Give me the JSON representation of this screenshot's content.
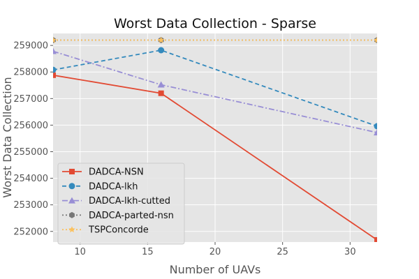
{
  "chart_data": {
    "type": "line",
    "title": "Worst Data Collection - Sparse",
    "xlabel": "Number of UAVs",
    "ylabel": "Worst Data Collection",
    "x": [
      8,
      16,
      32
    ],
    "xlim": [
      8,
      32
    ],
    "ylim": [
      251600,
      259450
    ],
    "xticks": [
      10,
      15,
      20,
      25,
      30
    ],
    "yticks": [
      252000,
      253000,
      254000,
      255000,
      256000,
      257000,
      258000,
      259000
    ],
    "grid": true,
    "background": "#e5e5e5",
    "legend_position": "lower-left",
    "series": [
      {
        "name": "DADCA-NSN",
        "values": [
          257880,
          257200,
          251680
        ],
        "color": "#e24a33",
        "dash": "solid",
        "marker": "square"
      },
      {
        "name": "DADCA-lkh",
        "values": [
          258080,
          258820,
          255960
        ],
        "color": "#348abd",
        "dash": "dashed",
        "marker": "circle"
      },
      {
        "name": "DADCA-lkh-cutted",
        "values": [
          258780,
          257520,
          255720
        ],
        "color": "#988ed5",
        "dash": "dashdot",
        "marker": "triangle"
      },
      {
        "name": "DADCA-parted-nsn",
        "values": [
          259200,
          259200,
          259200
        ],
        "color": "#777777",
        "dash": "dotted",
        "marker": "hexagon"
      },
      {
        "name": "TSPConcorde",
        "values": [
          259200,
          259200,
          259200
        ],
        "color": "#fbc15e",
        "dash": "dotted",
        "marker": "star"
      }
    ]
  }
}
